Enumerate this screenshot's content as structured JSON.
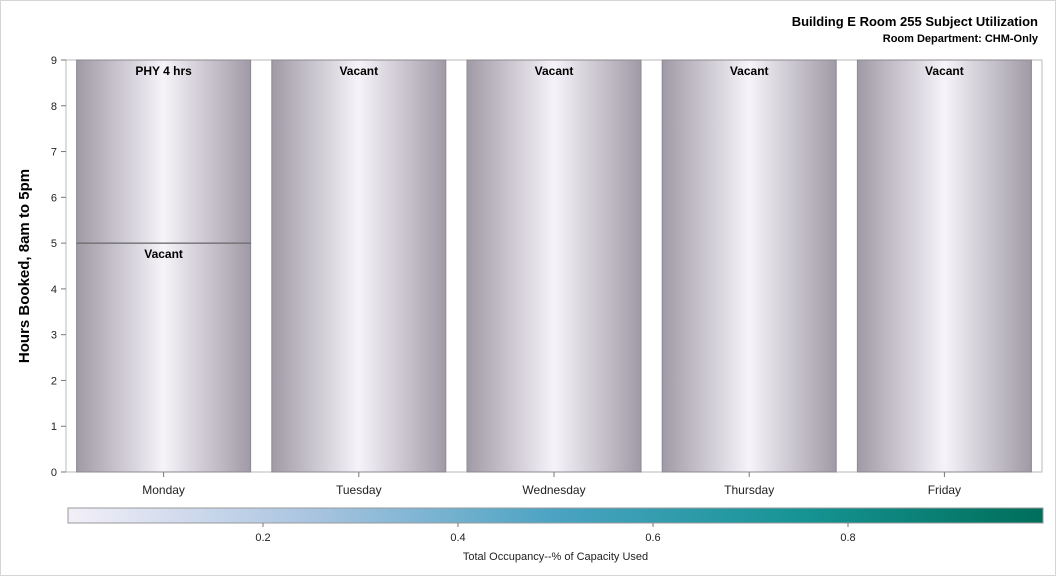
{
  "chart_data": {
    "type": "bar",
    "title": "Building E Room 255 Subject Utilization",
    "subtitle": "Room Department: CHM-Only",
    "ylabel": "Hours Booked, 8am to 5pm",
    "xlabel": "",
    "ylim": [
      0,
      9
    ],
    "yticks": [
      0,
      1,
      2,
      3,
      4,
      5,
      6,
      7,
      8,
      9
    ],
    "categories": [
      "Monday",
      "Tuesday",
      "Wednesday",
      "Thursday",
      "Friday"
    ],
    "segments": [
      [
        {
          "label": "Vacant",
          "from": 0,
          "to": 5,
          "occupancy": 0
        },
        {
          "label": "PHY 4 hrs",
          "from": 5,
          "to": 9,
          "occupancy": 0
        }
      ],
      [
        {
          "label": "Vacant",
          "from": 0,
          "to": 9,
          "occupancy": 0
        }
      ],
      [
        {
          "label": "Vacant",
          "from": 0,
          "to": 9,
          "occupancy": 0
        }
      ],
      [
        {
          "label": "Vacant",
          "from": 0,
          "to": 9,
          "occupancy": 0
        }
      ],
      [
        {
          "label": "Vacant",
          "from": 0,
          "to": 9,
          "occupancy": 0
        }
      ]
    ],
    "grid": false,
    "colorbar": {
      "label": "Total Occupancy--% of Capacity Used",
      "range": [
        0,
        1
      ],
      "ticks": [
        "0.2",
        "0.4",
        "0.6",
        "0.8"
      ],
      "tick_values": [
        0.2,
        0.4,
        0.6,
        0.8
      ],
      "colors": [
        "#f3eff8",
        "#a9c4e0",
        "#4aa3c2",
        "#169494",
        "#006e5a"
      ]
    },
    "bar_edge_color": "#a09aa6",
    "bar_center_color": "#f6f3f9",
    "divider_color": "#6b6b6b"
  }
}
